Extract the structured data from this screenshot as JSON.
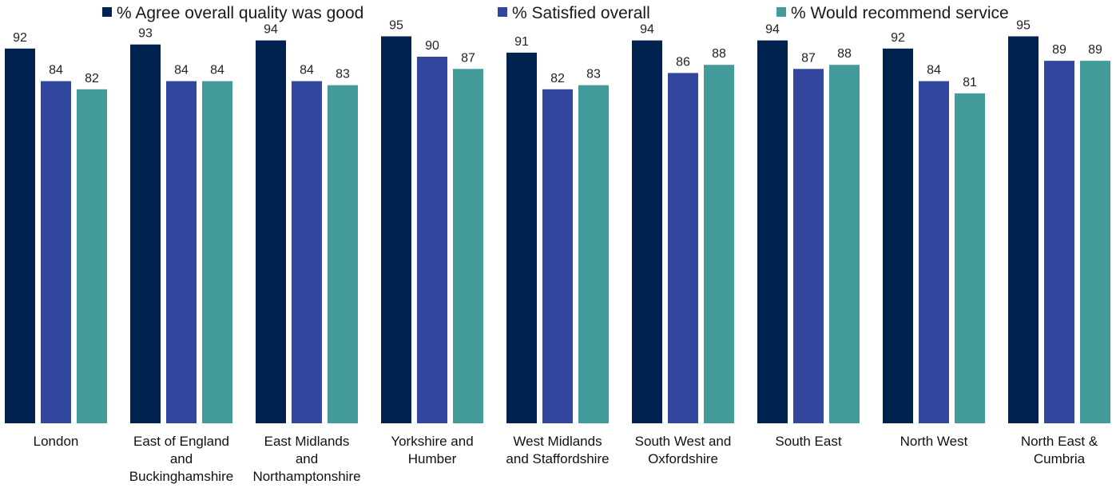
{
  "chart_data": {
    "type": "bar",
    "categories": [
      [
        "London"
      ],
      [
        "East of England",
        "and",
        "Buckinghamshire"
      ],
      [
        "East Midlands",
        "and",
        "Northamptonshire"
      ],
      [
        "Yorkshire and",
        "Humber"
      ],
      [
        "West Midlands",
        "and Staffordshire"
      ],
      [
        "South West and",
        "Oxfordshire"
      ],
      [
        "South East"
      ],
      [
        "North West"
      ],
      [
        "North East &",
        "Cumbria"
      ]
    ],
    "series": [
      {
        "name": "% Agree overall quality was good",
        "color": "#00224f",
        "values": [
          92,
          93,
          94,
          95,
          91,
          94,
          94,
          92,
          95
        ]
      },
      {
        "name": "% Satisfied overall",
        "color": "#33479e",
        "values": [
          84,
          84,
          84,
          90,
          82,
          86,
          87,
          84,
          89
        ]
      },
      {
        "name": "% Would recommend service",
        "color": "#439b9a",
        "values": [
          82,
          84,
          83,
          87,
          83,
          88,
          88,
          81,
          89
        ]
      }
    ],
    "ylim": [
      0,
      100
    ],
    "grid": false,
    "legend_position": "top"
  }
}
